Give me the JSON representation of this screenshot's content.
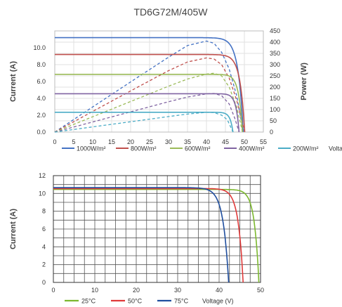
{
  "chart_data": [
    {
      "type": "line",
      "title": "TD6G72M/405W",
      "xlabel": "Voltage (V)",
      "ylabel": "Current (A)",
      "y2label": "Power (W)",
      "xlim": [
        0,
        55
      ],
      "ylim": [
        0,
        12
      ],
      "y2lim": [
        0,
        450
      ],
      "xticks": [
        0,
        5,
        10,
        15,
        20,
        25,
        30,
        35,
        40,
        45,
        50,
        55
      ],
      "yticks": [
        "0.0",
        "2.0",
        "4.0",
        "6.0",
        "8.0",
        "10.0"
      ],
      "y2ticks": [
        0,
        50,
        100,
        150,
        200,
        250,
        300,
        350,
        400,
        450
      ],
      "grid": true,
      "legend_position": "bottom",
      "series": [
        {
          "name": "1000W/m²",
          "color": "#4472c4",
          "current": {
            "isc": 11.2,
            "voc": 49.7,
            "knee": 41.0,
            "sharp": 6.5
          },
          "power": [
            [
              0,
              0
            ],
            [
              10,
              112
            ],
            [
              20,
              223
            ],
            [
              30,
              333
            ],
            [
              35,
              385
            ],
            [
              40,
              405
            ],
            [
              42,
              395
            ],
            [
              44,
              355
            ],
            [
              46,
              280
            ],
            [
              48,
              160
            ],
            [
              49.7,
              0
            ]
          ]
        },
        {
          "name": "800W/m²",
          "color": "#c0504d",
          "current": {
            "isc": 9.2,
            "voc": 50.1,
            "knee": 41.5,
            "sharp": 7.0
          },
          "power": [
            [
              0,
              0
            ],
            [
              10,
              92
            ],
            [
              20,
              183
            ],
            [
              30,
              273
            ],
            [
              35,
              312
            ],
            [
              40,
              330
            ],
            [
              42,
              325
            ],
            [
              44,
              300
            ],
            [
              46,
              240
            ],
            [
              48,
              140
            ],
            [
              50.1,
              0
            ]
          ]
        },
        {
          "name": "600W/m²",
          "color": "#9bbb59",
          "current": {
            "isc": 6.85,
            "voc": 49.5,
            "knee": 42.0,
            "sharp": 7.5
          },
          "power": [
            [
              0,
              0
            ],
            [
              10,
              68
            ],
            [
              20,
              136
            ],
            [
              30,
              204
            ],
            [
              35,
              236
            ],
            [
              40,
              258
            ],
            [
              42,
              262
            ],
            [
              44,
              250
            ],
            [
              46,
              200
            ],
            [
              48,
              110
            ],
            [
              49.5,
              0
            ]
          ]
        },
        {
          "name": "400W/m²",
          "color": "#8064a2",
          "current": {
            "isc": 4.55,
            "voc": 48.6,
            "knee": 42.0,
            "sharp": 8.0
          },
          "power": [
            [
              0,
              0
            ],
            [
              10,
              45
            ],
            [
              20,
              90
            ],
            [
              30,
              135
            ],
            [
              35,
              156
            ],
            [
              40,
              170
            ],
            [
              42,
              172
            ],
            [
              44,
              162
            ],
            [
              46,
              125
            ],
            [
              47.5,
              60
            ],
            [
              48.6,
              0
            ]
          ]
        },
        {
          "name": "200W/m²",
          "color": "#4bacc6",
          "current": {
            "isc": 2.35,
            "voc": 47.0,
            "knee": 41.0,
            "sharp": 8.0
          },
          "power": [
            [
              0,
              0
            ],
            [
              10,
              23
            ],
            [
              20,
              46
            ],
            [
              30,
              69
            ],
            [
              35,
              80
            ],
            [
              40,
              88
            ],
            [
              42,
              87
            ],
            [
              44,
              75
            ],
            [
              45.5,
              55
            ],
            [
              47.0,
              0
            ]
          ]
        }
      ]
    },
    {
      "type": "line",
      "xlabel": "Voltage (V)",
      "ylabel": "Current (A)",
      "xlim": [
        0,
        50
      ],
      "ylim": [
        0,
        12
      ],
      "xticks": [
        0,
        10,
        20,
        30,
        40,
        50
      ],
      "yticks": [
        0,
        2,
        4,
        6,
        8,
        10,
        12
      ],
      "grid": true,
      "legend_position": "bottom",
      "series": [
        {
          "name": "25°C",
          "color": "#7cb82f",
          "current": {
            "isc": 10.45,
            "voc": 49.6,
            "knee": 42.0,
            "sharp": 7.0
          }
        },
        {
          "name": "50°C",
          "color": "#e03a3a",
          "current": {
            "isc": 10.55,
            "voc": 45.8,
            "knee": 37.5,
            "sharp": 7.0
          }
        },
        {
          "name": "75°C",
          "color": "#1f4e9e",
          "current": {
            "isc": 10.65,
            "voc": 42.3,
            "knee": 33.0,
            "sharp": 7.0
          }
        }
      ]
    }
  ]
}
